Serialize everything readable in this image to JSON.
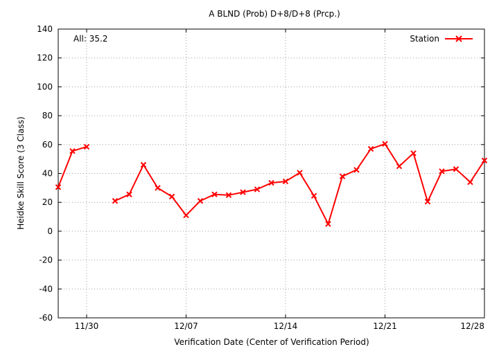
{
  "chart_data": {
    "type": "line",
    "title": "A BLND (Prob) D+8/D+8 (Prcp.)",
    "xlabel": "Verification Date (Center of Verification Period)",
    "ylabel": "Heidke Skill Score (3 Class)",
    "ylim": [
      -60,
      140
    ],
    "yticks": [
      -60,
      -40,
      -20,
      0,
      20,
      40,
      60,
      80,
      100,
      120,
      140
    ],
    "xticks": [
      "11/30",
      "12/07",
      "12/14",
      "12/21",
      "12/28"
    ],
    "grid": true,
    "legend": "top-right",
    "annotation": "All: 35.2",
    "series": [
      {
        "name": "Station",
        "color": "#ff0000",
        "marker": "x",
        "x": [
          "11/28",
          "11/29",
          "11/30",
          "12/01",
          "12/02",
          "12/03",
          "12/04",
          "12/05",
          "12/06",
          "12/07",
          "12/08",
          "12/09",
          "12/10",
          "12/11",
          "12/12",
          "12/13",
          "12/14",
          "12/15",
          "12/16",
          "12/17",
          "12/18",
          "12/19",
          "12/20",
          "12/21",
          "12/22",
          "12/23",
          "12/24",
          "12/25",
          "12/26",
          "12/27",
          "12/28"
        ],
        "values": [
          30.5,
          55.5,
          58.5,
          null,
          21,
          25.5,
          46,
          30,
          24,
          11,
          21,
          25.5,
          25,
          27,
          29,
          33.5,
          34.5,
          40.5,
          24.5,
          5,
          38,
          42.5,
          57,
          60.5,
          45,
          54,
          20.5,
          41.5,
          43,
          34,
          49
        ]
      }
    ]
  }
}
